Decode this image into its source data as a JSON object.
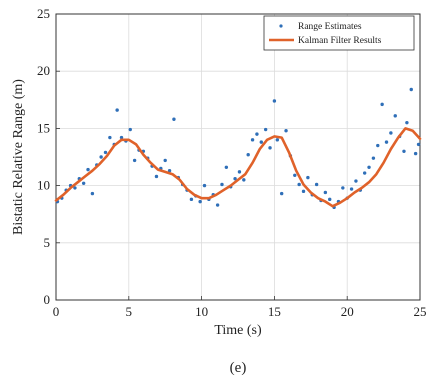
{
  "chart_data": {
    "type": "scatter",
    "xlabel": "Time (s)",
    "ylabel": "Bistatic Relative Range (m)",
    "xlim": [
      0,
      25
    ],
    "ylim": [
      0,
      25
    ],
    "xticks": [
      "0",
      "5",
      "10",
      "15",
      "20",
      "25"
    ],
    "yticks": [
      "0",
      "5",
      "10",
      "15",
      "20",
      "25"
    ],
    "grid": true,
    "legend_position": "top-right",
    "series": [
      {
        "name": "Range Estimates",
        "kind": "scatter",
        "color": "#2f6fb8",
        "x": [
          0.1,
          0.4,
          0.7,
          1.0,
          1.3,
          1.6,
          1.9,
          2.2,
          2.5,
          2.8,
          3.1,
          3.4,
          3.7,
          4.0,
          4.2,
          4.5,
          4.8,
          5.1,
          5.4,
          5.7,
          6.0,
          6.3,
          6.6,
          6.9,
          7.2,
          7.5,
          7.8,
          8.1,
          8.4,
          8.7,
          9.0,
          9.3,
          9.6,
          9.9,
          10.2,
          10.5,
          10.8,
          11.1,
          11.4,
          11.7,
          12.0,
          12.3,
          12.6,
          12.9,
          13.2,
          13.5,
          13.8,
          14.1,
          14.4,
          14.7,
          15.0,
          15.2,
          15.5,
          15.8,
          16.1,
          16.4,
          16.7,
          17.0,
          17.3,
          17.6,
          17.9,
          18.2,
          18.5,
          18.8,
          19.1,
          19.4,
          19.7,
          20.0,
          20.3,
          20.6,
          20.9,
          21.2,
          21.5,
          21.8,
          22.1,
          22.4,
          22.7,
          23.0,
          23.3,
          23.6,
          23.9,
          24.1,
          24.4,
          24.7,
          24.9
        ],
        "y": [
          8.6,
          8.9,
          9.6,
          10.0,
          9.8,
          10.6,
          10.2,
          11.4,
          9.3,
          11.8,
          12.5,
          12.9,
          14.2,
          13.6,
          16.6,
          14.2,
          13.9,
          14.9,
          12.2,
          13.1,
          13.0,
          12.4,
          11.7,
          10.8,
          11.5,
          12.2,
          11.3,
          15.8,
          10.7,
          10.1,
          9.6,
          8.8,
          9.1,
          8.6,
          10.0,
          8.8,
          9.2,
          8.3,
          10.1,
          11.6,
          9.9,
          10.6,
          11.2,
          10.5,
          12.7,
          14.0,
          14.5,
          13.8,
          14.9,
          13.3,
          17.4,
          14.0,
          9.3,
          14.8,
          12.6,
          10.9,
          10.1,
          9.5,
          10.7,
          9.2,
          10.1,
          8.7,
          9.4,
          8.8,
          8.1,
          8.6,
          9.8,
          8.9,
          9.7,
          10.4,
          9.6,
          11.1,
          11.6,
          12.4,
          13.5,
          17.1,
          13.8,
          14.6,
          16.1,
          14.3,
          13.0,
          15.5,
          18.4,
          12.8,
          13.6
        ]
      },
      {
        "name": "Kalman Filter Results",
        "kind": "line",
        "color": "#e0622a",
        "x": [
          0,
          0.5,
          1,
          1.5,
          2,
          2.5,
          3,
          3.5,
          4,
          4.5,
          5,
          5.5,
          6,
          6.5,
          7,
          7.5,
          8,
          8.5,
          9,
          9.5,
          10,
          10.5,
          11,
          11.5,
          12,
          12.5,
          13,
          13.5,
          14,
          14.5,
          15,
          15.5,
          16,
          16.5,
          17,
          17.5,
          18,
          18.5,
          19,
          19.5,
          20,
          20.5,
          21,
          21.5,
          22,
          22.5,
          23,
          23.5,
          24,
          24.5,
          25
        ],
        "y": [
          8.7,
          9.2,
          9.8,
          10.3,
          10.8,
          11.3,
          11.9,
          12.6,
          13.5,
          14.0,
          14.0,
          13.6,
          12.7,
          12.0,
          11.4,
          11.2,
          11.0,
          10.5,
          9.7,
          9.2,
          8.9,
          8.9,
          9.2,
          9.6,
          10.0,
          10.5,
          11.0,
          12.0,
          13.2,
          14.0,
          14.3,
          14.2,
          12.9,
          11.3,
          10.1,
          9.4,
          8.9,
          8.6,
          8.2,
          8.5,
          8.9,
          9.4,
          9.8,
          10.3,
          11.0,
          12.0,
          13.2,
          14.2,
          15.0,
          14.8,
          14.1
        ]
      }
    ]
  },
  "caption": "(e)"
}
